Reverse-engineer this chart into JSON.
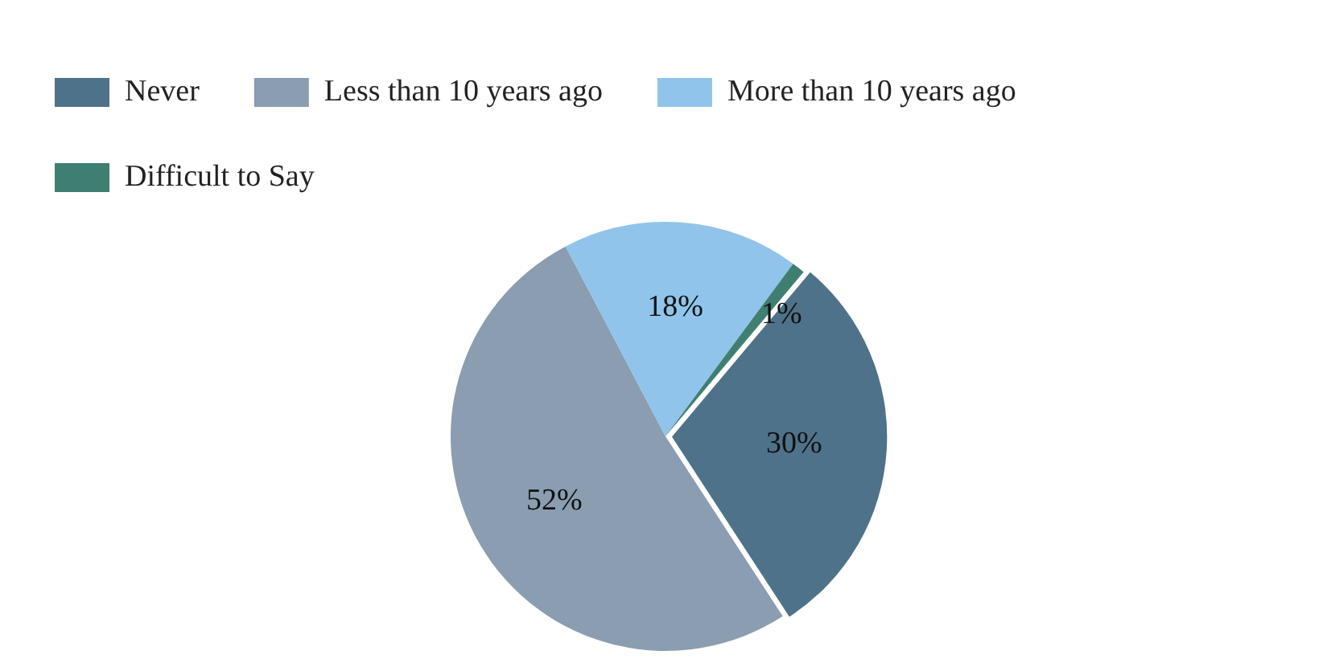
{
  "chart_data": {
    "type": "pie",
    "categories": [
      "Never",
      "Less than 10 years ago",
      "More than 10 years ago",
      "Difficult to Say"
    ],
    "values": [
      30,
      52,
      18,
      1
    ],
    "colors": [
      "#4e7289",
      "#8a9db1",
      "#90c4ea",
      "#3f7f72"
    ],
    "value_labels": [
      "30%",
      "52%",
      "18%",
      "1%"
    ],
    "legend": "top"
  }
}
